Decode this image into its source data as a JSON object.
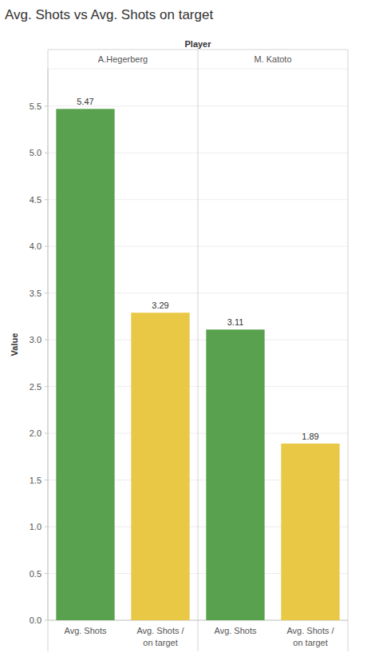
{
  "chart_data": {
    "type": "bar",
    "title": "Avg. Shots vs Avg. Shots on target",
    "xlabel": "Player",
    "ylabel": "Value",
    "categories": [
      "A.Hegerberg",
      "M. Katoto"
    ],
    "series": [
      {
        "name": "Avg. Shots",
        "color": "#59a14f",
        "values": [
          5.47,
          3.11
        ]
      },
      {
        "name": "Avg. Shots / on target",
        "color": "#e9c846",
        "values": [
          3.29,
          1.89
        ]
      }
    ],
    "ylim": [
      0,
      5.9
    ],
    "yticks": [
      {
        "value": 0,
        "label": "0.0"
      },
      0.5,
      {
        "value": 1,
        "label": "1.0"
      },
      1.5,
      {
        "value": 2,
        "label": "2.0"
      },
      2.5,
      {
        "value": 3,
        "label": "3.0"
      },
      3.5,
      {
        "value": 4,
        "label": "4.0"
      },
      4.5,
      {
        "value": 5,
        "label": "5.0"
      },
      5.5
    ],
    "grid": true,
    "data_labels": true
  }
}
